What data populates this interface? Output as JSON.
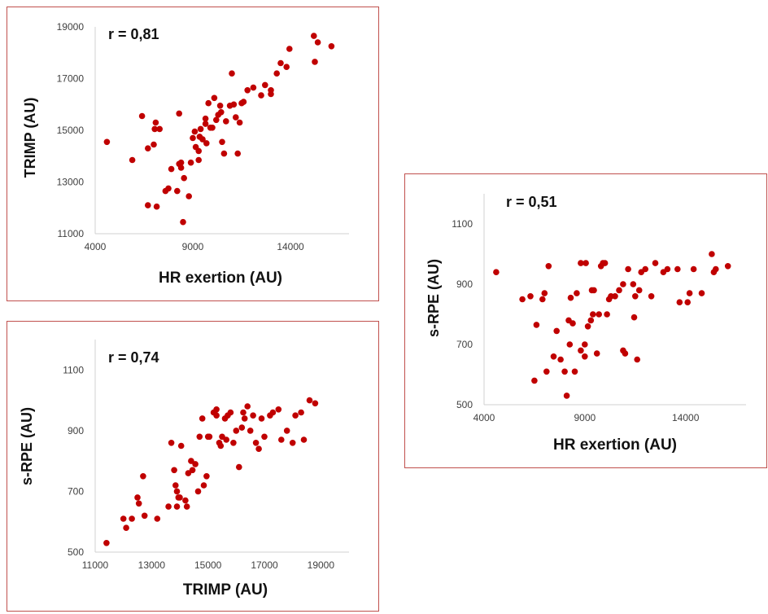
{
  "chart_data": [
    {
      "id": "a",
      "type": "scatter",
      "annotation": "r = 0,81",
      "xlabel": "HR exertion (AU)",
      "ylabel": "TRIMP (AU)",
      "xlim": [
        4000,
        17000
      ],
      "ylim": [
        11000,
        19000
      ],
      "xticks": [
        "4000",
        "9000",
        "14000"
      ],
      "yticks": [
        "11000",
        "13000",
        "15000",
        "17000",
        "19000"
      ],
      "color": "#c00000",
      "points": [
        [
          4600,
          14550
        ],
        [
          5900,
          13850
        ],
        [
          6400,
          15550
        ],
        [
          6700,
          12100
        ],
        [
          6700,
          14300
        ],
        [
          7000,
          14450
        ],
        [
          7150,
          12050
        ],
        [
          7100,
          15300
        ],
        [
          7050,
          15050
        ],
        [
          7300,
          15050
        ],
        [
          7600,
          12650
        ],
        [
          7750,
          12750
        ],
        [
          7900,
          13500
        ],
        [
          8200,
          12650
        ],
        [
          8300,
          13700
        ],
        [
          8400,
          13750
        ],
        [
          8300,
          15650
        ],
        [
          8400,
          13550
        ],
        [
          8500,
          11450
        ],
        [
          8550,
          13150
        ],
        [
          8800,
          12450
        ],
        [
          8900,
          13750
        ],
        [
          9000,
          14700
        ],
        [
          9100,
          14950
        ],
        [
          9150,
          14350
        ],
        [
          9300,
          14200
        ],
        [
          9350,
          14750
        ],
        [
          9300,
          13850
        ],
        [
          9400,
          15050
        ],
        [
          9500,
          14650
        ],
        [
          9650,
          15250
        ],
        [
          9650,
          15450
        ],
        [
          9700,
          14500
        ],
        [
          9800,
          16050
        ],
        [
          9900,
          15100
        ],
        [
          10000,
          15100
        ],
        [
          10100,
          16250
        ],
        [
          10200,
          15400
        ],
        [
          10300,
          15600
        ],
        [
          10400,
          15950
        ],
        [
          10450,
          15700
        ],
        [
          10500,
          14550
        ],
        [
          10600,
          14100
        ],
        [
          10700,
          15350
        ],
        [
          10900,
          15950
        ],
        [
          11000,
          17200
        ],
        [
          11100,
          16000
        ],
        [
          11200,
          15500
        ],
        [
          11300,
          14100
        ],
        [
          11400,
          15300
        ],
        [
          11500,
          16050
        ],
        [
          11600,
          16100
        ],
        [
          11800,
          16550
        ],
        [
          12100,
          16650
        ],
        [
          12500,
          16350
        ],
        [
          12700,
          16750
        ],
        [
          13000,
          16550
        ],
        [
          13000,
          16400
        ],
        [
          13300,
          17200
        ],
        [
          13500,
          17600
        ],
        [
          13800,
          17450
        ],
        [
          13950,
          18150
        ],
        [
          15200,
          18650
        ],
        [
          15250,
          17650
        ],
        [
          15400,
          18400
        ],
        [
          16100,
          18250
        ]
      ]
    },
    {
      "id": "b",
      "type": "scatter",
      "annotation": "r = 0,51",
      "xlabel": "HR exertion (AU)",
      "ylabel": "s-RPE (AU)",
      "xlim": [
        4000,
        17000
      ],
      "ylim": [
        500,
        1200
      ],
      "xticks": [
        "4000",
        "9000",
        "14000"
      ],
      "yticks": [
        "500",
        "700",
        "900",
        "1100"
      ],
      "color": "#c00000",
      "points": [
        [
          4600,
          940
        ],
        [
          5900,
          850
        ],
        [
          6300,
          860
        ],
        [
          6500,
          580
        ],
        [
          6600,
          765
        ],
        [
          6900,
          850
        ],
        [
          7100,
          610
        ],
        [
          7000,
          870
        ],
        [
          7200,
          960
        ],
        [
          7450,
          660
        ],
        [
          7600,
          745
        ],
        [
          7800,
          650
        ],
        [
          8000,
          610
        ],
        [
          8100,
          530
        ],
        [
          8200,
          780
        ],
        [
          8250,
          700
        ],
        [
          8300,
          855
        ],
        [
          8400,
          770
        ],
        [
          8500,
          610
        ],
        [
          8600,
          870
        ],
        [
          8800,
          680
        ],
        [
          8800,
          970
        ],
        [
          9000,
          660
        ],
        [
          9000,
          700
        ],
        [
          9050,
          970
        ],
        [
          9150,
          760
        ],
        [
          9300,
          780
        ],
        [
          9350,
          880
        ],
        [
          9400,
          800
        ],
        [
          9450,
          880
        ],
        [
          9600,
          670
        ],
        [
          9700,
          800
        ],
        [
          9800,
          960
        ],
        [
          9900,
          970
        ],
        [
          10000,
          970
        ],
        [
          10100,
          800
        ],
        [
          10200,
          850
        ],
        [
          10300,
          860
        ],
        [
          10500,
          860
        ],
        [
          10700,
          880
        ],
        [
          10900,
          900
        ],
        [
          10900,
          680
        ],
        [
          11000,
          670
        ],
        [
          11150,
          950
        ],
        [
          11400,
          900
        ],
        [
          11450,
          790
        ],
        [
          11500,
          860
        ],
        [
          11600,
          650
        ],
        [
          11700,
          880
        ],
        [
          11800,
          940
        ],
        [
          12000,
          950
        ],
        [
          12300,
          860
        ],
        [
          12500,
          970
        ],
        [
          12900,
          940
        ],
        [
          13100,
          950
        ],
        [
          13600,
          950
        ],
        [
          13700,
          840
        ],
        [
          14100,
          840
        ],
        [
          14200,
          870
        ],
        [
          14400,
          950
        ],
        [
          14800,
          870
        ],
        [
          15300,
          1000
        ],
        [
          15400,
          940
        ],
        [
          15500,
          950
        ],
        [
          16100,
          960
        ]
      ]
    },
    {
      "id": "c",
      "type": "scatter",
      "annotation": "r = 0,74",
      "xlabel": "TRIMP (AU)",
      "ylabel": "s-RPE (AU)",
      "xlim": [
        11000,
        20000
      ],
      "ylim": [
        500,
        1200
      ],
      "xticks": [
        "11000",
        "13000",
        "15000",
        "17000",
        "19000"
      ],
      "yticks": [
        "500",
        "700",
        "900",
        "1100"
      ],
      "color": "#c00000",
      "points": [
        [
          11400,
          530
        ],
        [
          12000,
          610
        ],
        [
          12100,
          580
        ],
        [
          12300,
          610
        ],
        [
          12500,
          680
        ],
        [
          12550,
          660
        ],
        [
          12700,
          750
        ],
        [
          12750,
          620
        ],
        [
          13200,
          610
        ],
        [
          13600,
          650
        ],
        [
          13700,
          860
        ],
        [
          13800,
          770
        ],
        [
          13850,
          720
        ],
        [
          13900,
          650
        ],
        [
          13900,
          700
        ],
        [
          13950,
          680
        ],
        [
          14000,
          680
        ],
        [
          14050,
          850
        ],
        [
          14200,
          670
        ],
        [
          14250,
          650
        ],
        [
          14300,
          760
        ],
        [
          14400,
          800
        ],
        [
          14450,
          770
        ],
        [
          14550,
          790
        ],
        [
          14650,
          700
        ],
        [
          14700,
          880
        ],
        [
          14800,
          940
        ],
        [
          14850,
          720
        ],
        [
          14950,
          750
        ],
        [
          15000,
          880
        ],
        [
          15050,
          880
        ],
        [
          15200,
          960
        ],
        [
          15300,
          970
        ],
        [
          15300,
          950
        ],
        [
          15400,
          860
        ],
        [
          15450,
          850
        ],
        [
          15500,
          880
        ],
        [
          15600,
          940
        ],
        [
          15650,
          870
        ],
        [
          15700,
          950
        ],
        [
          15800,
          960
        ],
        [
          15900,
          860
        ],
        [
          16000,
          900
        ],
        [
          16100,
          780
        ],
        [
          16200,
          910
        ],
        [
          16250,
          960
        ],
        [
          16300,
          940
        ],
        [
          16400,
          980
        ],
        [
          16500,
          900
        ],
        [
          16600,
          950
        ],
        [
          16700,
          860
        ],
        [
          16800,
          840
        ],
        [
          16900,
          940
        ],
        [
          17000,
          880
        ],
        [
          17200,
          950
        ],
        [
          17300,
          960
        ],
        [
          17500,
          970
        ],
        [
          17600,
          870
        ],
        [
          17800,
          900
        ],
        [
          18000,
          860
        ],
        [
          18100,
          950
        ],
        [
          18300,
          960
        ],
        [
          18400,
          870
        ],
        [
          18600,
          1000
        ],
        [
          18800,
          990
        ]
      ]
    }
  ]
}
